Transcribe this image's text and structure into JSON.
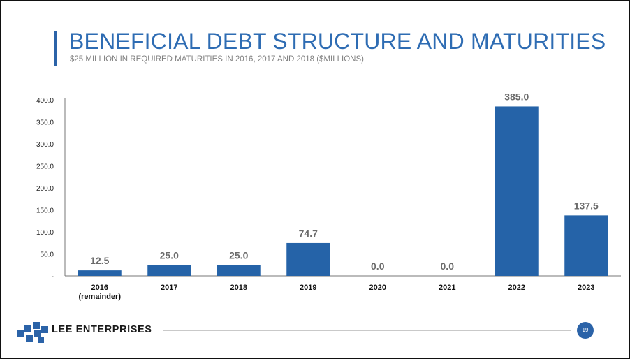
{
  "slide": {
    "title": "BENEFICIAL DEBT STRUCTURE AND MATURITIES",
    "subtitle": "$25 MILLION IN REQUIRED MATURITIES IN 2016, 2017 AND 2018 ($MILLIONS)",
    "company_logo_text": "LEE ENTERPRISES",
    "page_number": "19"
  },
  "colors": {
    "accent": "#2b63a8",
    "title": "#2e6cb3",
    "bar": "#2563a8"
  },
  "chart_data": {
    "type": "bar",
    "title": "",
    "xlabel": "",
    "ylabel": "",
    "ylim": [
      0,
      400
    ],
    "yticks": [
      "-",
      "50.0",
      "100.0",
      "150.0",
      "200.0",
      "250.0",
      "300.0",
      "350.0",
      "400.0"
    ],
    "categories": [
      [
        "2016",
        "(remainder)"
      ],
      [
        "2017"
      ],
      [
        "2018"
      ],
      [
        "2019"
      ],
      [
        "2020"
      ],
      [
        "2021"
      ],
      [
        "2022"
      ],
      [
        "2023"
      ]
    ],
    "values": [
      12.5,
      25.0,
      25.0,
      74.7,
      0.0,
      0.0,
      385.0,
      137.5
    ],
    "data_labels": [
      "12.5",
      "25.0",
      "25.0",
      "74.7",
      "0.0",
      "0.0",
      "385.0",
      "137.5"
    ],
    "grid": false,
    "legend": "none"
  }
}
